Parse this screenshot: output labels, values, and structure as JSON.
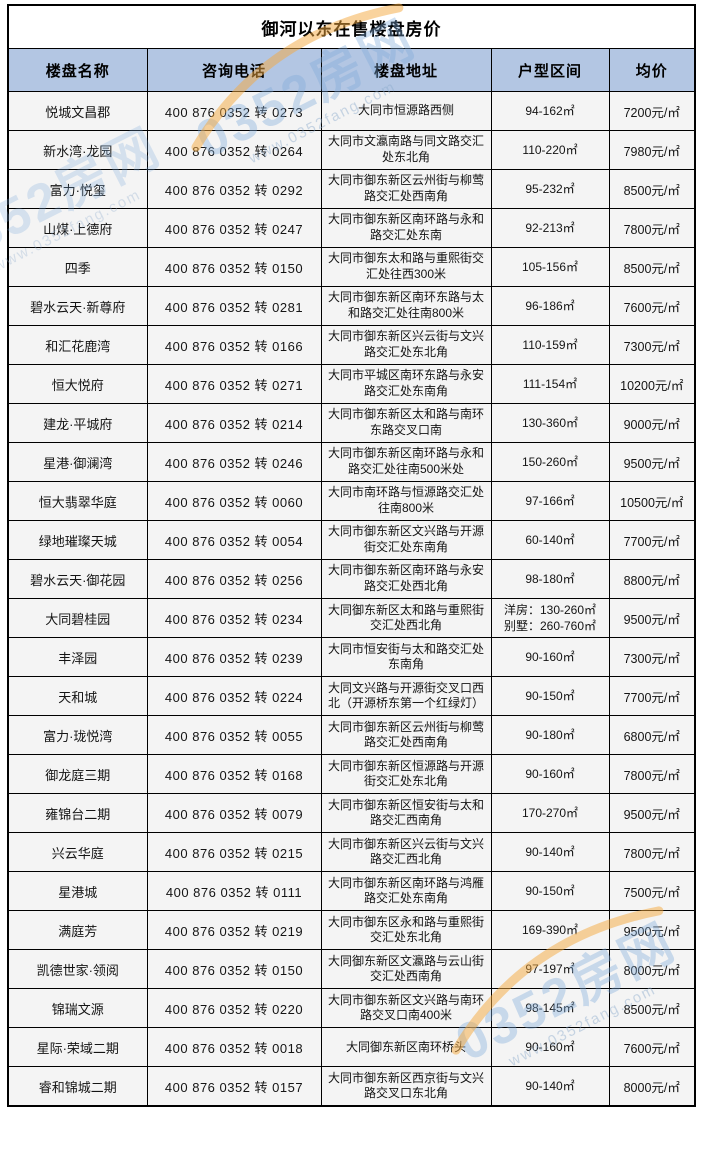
{
  "page": {
    "title": "御河以东在售楼盘房价"
  },
  "watermark": {
    "brand": "0352房网",
    "url": "www.0352fang.com"
  },
  "colors": {
    "header_bg": "#b3c6e3",
    "cell_bg": "#f4f4f4",
    "border": "#000000",
    "title_color": "#000000",
    "watermark_blue": "#7eacda",
    "watermark_orange": "#f5a93f"
  },
  "chart_data": {
    "type": "table",
    "title": "御河以东在售楼盘房价",
    "columns": [
      "楼盘名称",
      "咨询电话",
      "楼盘地址",
      "户型区间",
      "均价"
    ],
    "rows": [
      [
        "悦城文昌郡",
        "400 876 0352 转 0273",
        "大同市恒源路西侧",
        "94-162㎡",
        "7200元/㎡"
      ],
      [
        "新水湾·龙园",
        "400 876 0352 转 0264",
        "大同市文瀛南路与同文路交汇处东北角",
        "110-220㎡",
        "7980元/㎡"
      ],
      [
        "富力·悦玺",
        "400 876 0352 转 0292",
        "大同市御东新区云州街与柳莺路交汇处西南角",
        "95-232㎡",
        "8500元/㎡"
      ],
      [
        "山煤·上德府",
        "400 876 0352 转 0247",
        "大同市御东新区南环路与永和路交汇处东南",
        "92-213㎡",
        "7800元/㎡"
      ],
      [
        "四季",
        "400 876 0352 转 0150",
        "大同市御东太和路与重熙街交汇处往西300米",
        "105-156㎡",
        "8500元/㎡"
      ],
      [
        "碧水云天·新尊府",
        "400 876 0352 转 0281",
        "大同市御东新区南环东路与太和路交汇处往南800米",
        "96-186㎡",
        "7600元/㎡"
      ],
      [
        "和汇花鹿湾",
        "400 876 0352 转 0166",
        "大同市御东新区兴云街与文兴路交汇处东北角",
        "110-159㎡",
        "7300元/㎡"
      ],
      [
        "恒大悦府",
        "400 876 0352 转 0271",
        "大同市平城区南环东路与永安路交汇处东南角",
        "111-154㎡",
        "10200元/㎡"
      ],
      [
        "建龙·平城府",
        "400 876 0352 转 0214",
        "大同市御东新区太和路与南环东路交叉口南",
        "130-360㎡",
        "9000元/㎡"
      ],
      [
        "星港·御澜湾",
        "400 876 0352 转 0246",
        "大同市御东新区南环路与永和路交汇处往南500米处",
        "150-260㎡",
        "9500元/㎡"
      ],
      [
        "恒大翡翠华庭",
        "400 876 0352 转 0060",
        "大同市南环路与恒源路交汇处往南800米",
        "97-166㎡",
        "10500元/㎡"
      ],
      [
        "绿地璀璨天城",
        "400 876 0352 转 0054",
        "大同市御东新区文兴路与开源街交汇处东南角",
        "60-140㎡",
        "7700元/㎡"
      ],
      [
        "碧水云天·御花园",
        "400 876 0352 转 0256",
        "大同市御东新区南环路与永安路交汇处西北角",
        "98-180㎡",
        "8800元/㎡"
      ],
      [
        "大同碧桂园",
        "400 876 0352 转 0234",
        "大同御东新区太和路与重熙街交汇处西北角",
        "洋房：130-260㎡\n别墅：260-760㎡",
        "9500元/㎡"
      ],
      [
        "丰泽园",
        "400 876 0352 转 0239",
        "大同市恒安街与太和路交汇处东南角",
        "90-160㎡",
        "7300元/㎡"
      ],
      [
        "天和城",
        "400 876 0352 转 0224",
        "大同文兴路与开源街交叉口西北（开源桥东第一个红绿灯）",
        "90-150㎡",
        "7700元/㎡"
      ],
      [
        "富力·珑悦湾",
        "400 876 0352 转 0055",
        "大同市御东新区云州街与柳莺路交汇处西南角",
        "90-180㎡",
        "6800元/㎡"
      ],
      [
        "御龙庭三期",
        "400 876 0352 转 0168",
        "大同市御东新区恒源路与开源街交汇处东北角",
        "90-160㎡",
        "7800元/㎡"
      ],
      [
        "雍锦台二期",
        "400 876 0352 转 0079",
        "大同市御东新区恒安街与太和路交汇西南角",
        "170-270㎡",
        "9500元/㎡"
      ],
      [
        "兴云华庭",
        "400 876 0352 转 0215",
        "大同市御东新区兴云街与文兴路交汇西北角",
        "90-140㎡",
        "7800元/㎡"
      ],
      [
        "星港城",
        "400 876 0352 转 0111",
        "大同市御东新区南环路与鸿雁路交汇处东南角",
        "90-150㎡",
        "7500元/㎡"
      ],
      [
        "满庭芳",
        "400 876 0352 转 0219",
        "大同市御东区永和路与重熙街交汇处东北角",
        "169-390㎡",
        "9500元/㎡"
      ],
      [
        "凯德世家·领阅",
        "400 876 0352 转 0150",
        "大同御东新区文瀛路与云山街交汇处西南角",
        "97-197㎡",
        "8000元/㎡"
      ],
      [
        "锦瑞文源",
        "400 876 0352 转 0220",
        "大同市御东新区文兴路与南环路交叉口南400米",
        "98-145㎡",
        "8500元/㎡"
      ],
      [
        "星际·荣域二期",
        "400 876 0352 转 0018",
        "大同御东新区南环桥头",
        "90-160㎡",
        "7600元/㎡"
      ],
      [
        "睿和锦城二期",
        "400 876 0352 转 0157",
        "大同市御东新区西京街与文兴路交叉口东北角",
        "90-140㎡",
        "8000元/㎡"
      ]
    ]
  }
}
